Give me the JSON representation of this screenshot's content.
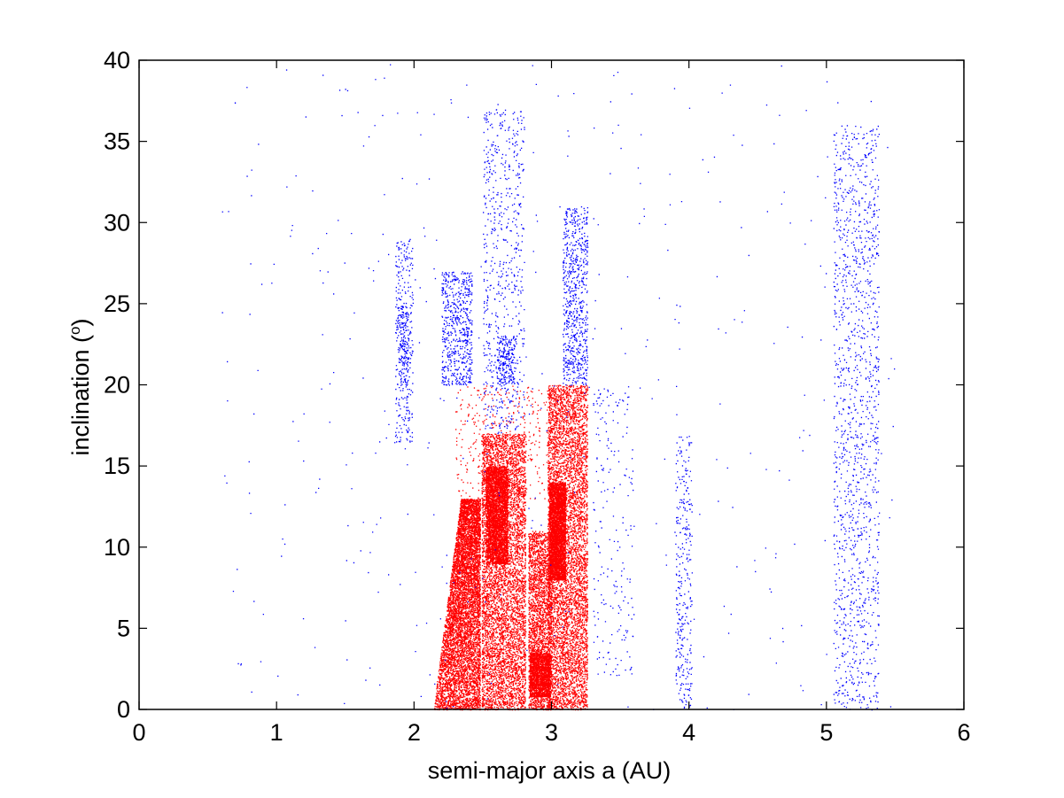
{
  "colors": {
    "background": "#ffffff",
    "axes": "#000000",
    "main_belt": "#ff0000",
    "other": "#0000ff"
  },
  "chart_data": {
    "type": "scatter",
    "title": "",
    "xlabel": "semi-major axis a   (AU)",
    "ylabel_text": "inclination  (",
    "ylabel_degree": "o",
    "ylabel_close": ")",
    "xlim": [
      0,
      6
    ],
    "ylim": [
      0,
      40
    ],
    "xticks": [
      0,
      1,
      2,
      3,
      4,
      5,
      6
    ],
    "xtick_labels": [
      "0",
      "1",
      "2",
      "3",
      "4",
      "5",
      "6"
    ],
    "yticks": [
      0,
      5,
      10,
      15,
      20,
      25,
      30,
      35,
      40
    ],
    "ytick_labels": [
      "0",
      "5",
      "10",
      "15",
      "20",
      "25",
      "30",
      "35",
      "40"
    ],
    "grid": false,
    "legend": "none",
    "series": [
      {
        "color": "#ff0000",
        "marker": "dot",
        "regions": [
          {
            "a": [
              2.14,
              2.48
            ],
            "i": [
              0,
              13
            ],
            "density": 7000,
            "taper": "top-narrow"
          },
          {
            "a": [
              2.49,
              2.81
            ],
            "i": [
              0,
              17
            ],
            "density": 9000,
            "core": [
              2.52,
              2.68,
              9,
              15
            ]
          },
          {
            "a": [
              2.83,
              3.0
            ],
            "i": [
              0,
              11
            ],
            "density": 2500
          },
          {
            "a": [
              2.84,
              2.99
            ],
            "i": [
              0.8,
              3.5
            ],
            "density": 1500
          },
          {
            "a": [
              2.97,
              3.26
            ],
            "i": [
              0,
              20
            ],
            "density": 9000,
            "core": [
              2.98,
              3.1,
              8,
              14
            ]
          },
          {
            "a": [
              2.3,
              3.2
            ],
            "i": [
              13,
              20
            ],
            "density": 500
          }
        ]
      },
      {
        "color": "#0000ff",
        "marker": "dot",
        "regions": [
          {
            "a": [
              1.86,
              1.99
            ],
            "i": [
              16.5,
              29
            ],
            "density": 450,
            "core": [
              1.9,
              1.96,
              20,
              25
            ]
          },
          {
            "a": [
              2.2,
              2.42
            ],
            "i": [
              20,
              27
            ],
            "density": 600
          },
          {
            "a": [
              2.5,
              2.8
            ],
            "i": [
              17,
              37
            ],
            "density": 650
          },
          {
            "a": [
              2.6,
              2.73
            ],
            "i": [
              20,
              23
            ],
            "density": 200
          },
          {
            "a": [
              3.08,
              3.26
            ],
            "i": [
              20,
              31
            ],
            "density": 700
          },
          {
            "a": [
              3.3,
              3.6
            ],
            "i": [
              2,
              20
            ],
            "density": 200
          },
          {
            "a": [
              3.9,
              4.02
            ],
            "i": [
              0,
              17
            ],
            "density": 320
          },
          {
            "a": [
              5.05,
              5.38
            ],
            "i": [
              0,
              36
            ],
            "density": 1400
          },
          {
            "a": [
              0.6,
              5.5
            ],
            "i": [
              0,
              40
            ],
            "density": 450
          }
        ]
      }
    ]
  }
}
